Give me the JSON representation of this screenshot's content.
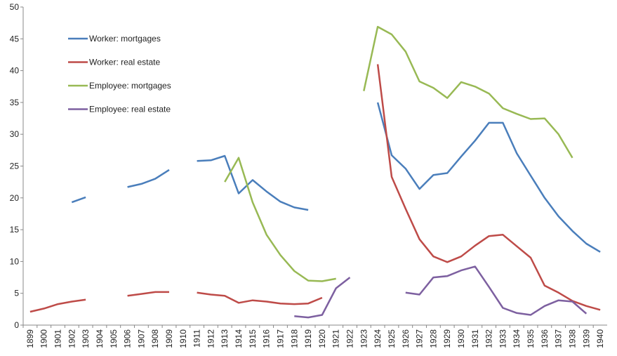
{
  "chart_data": {
    "type": "line",
    "categories": [
      "1899",
      "1900",
      "1901",
      "1902",
      "1903",
      "1904",
      "1905",
      "1906",
      "1907",
      "1908",
      "1909",
      "1910",
      "1911",
      "1912",
      "1913",
      "1914",
      "1915",
      "1916",
      "1917",
      "1918",
      "1919",
      "1920",
      "1921",
      "1922",
      "1923",
      "1924",
      "1925",
      "1926",
      "1927",
      "1928",
      "1929",
      "1930",
      "1931",
      "1932",
      "1933",
      "1934",
      "1935",
      "1936",
      "1937",
      "1938",
      "1939",
      "1940"
    ],
    "series": [
      {
        "name": "Worker: mortgages",
        "color": "#4a7ebb",
        "values": [
          null,
          null,
          null,
          19.3,
          20.1,
          null,
          null,
          21.7,
          22.2,
          23.0,
          24.4,
          null,
          25.8,
          25.9,
          26.6,
          20.7,
          22.8,
          21.0,
          19.4,
          18.5,
          18.1,
          null,
          null,
          null,
          null,
          35.0,
          26.7,
          24.6,
          21.4,
          23.6,
          23.9,
          26.5,
          29.0,
          31.8,
          31.8,
          27.0,
          23.5,
          20.0,
          17.1,
          14.8,
          12.8,
          11.5
        ]
      },
      {
        "name": "Worker: real estate",
        "color": "#be4b48",
        "values": [
          2.1,
          2.6,
          3.3,
          3.7,
          4.0,
          null,
          null,
          4.6,
          4.9,
          5.2,
          5.2,
          null,
          5.1,
          4.8,
          4.6,
          3.5,
          3.9,
          3.7,
          3.4,
          3.3,
          3.4,
          4.3,
          null,
          null,
          null,
          41.0,
          23.3,
          18.3,
          13.5,
          10.8,
          9.9,
          10.8,
          12.5,
          14.0,
          14.2,
          12.4,
          10.6,
          6.2,
          5.1,
          3.8,
          3.0,
          2.4
        ]
      },
      {
        "name": "Employee: mortgages",
        "color": "#98b954",
        "values": [
          null,
          null,
          null,
          null,
          null,
          null,
          null,
          null,
          null,
          null,
          null,
          null,
          null,
          null,
          22.5,
          26.3,
          19.3,
          14.2,
          11.0,
          8.5,
          7.0,
          6.9,
          7.3,
          null,
          36.8,
          46.9,
          45.7,
          43.0,
          38.3,
          37.3,
          35.7,
          38.2,
          37.5,
          36.4,
          34.1,
          33.2,
          32.4,
          32.5,
          30.0,
          26.3,
          null,
          null
        ]
      },
      {
        "name": "Employee: real estate",
        "color": "#7d60a0",
        "values": [
          null,
          null,
          null,
          null,
          null,
          null,
          null,
          null,
          null,
          null,
          null,
          null,
          null,
          null,
          null,
          null,
          null,
          null,
          null,
          1.4,
          1.2,
          1.6,
          5.8,
          7.5,
          null,
          null,
          null,
          5.1,
          4.8,
          7.5,
          7.7,
          8.6,
          9.2,
          6.0,
          2.7,
          1.9,
          1.6,
          3.0,
          3.9,
          3.7,
          1.8,
          null
        ]
      }
    ],
    "ylim": [
      0,
      50
    ],
    "yticks": [
      0,
      5,
      10,
      15,
      20,
      25,
      30,
      35,
      40,
      45,
      50
    ],
    "grid": false,
    "legend": "top-left"
  }
}
